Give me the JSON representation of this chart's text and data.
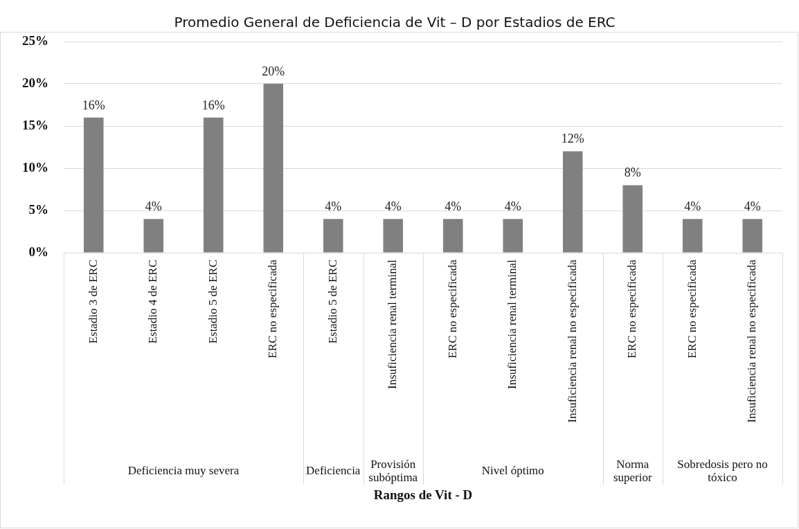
{
  "chart_data": {
    "type": "bar",
    "title": "Promedio General de Deficiencia de Vit – D por Estadios de ERC",
    "xlabel": "Rangos de Vit - D",
    "categories": [
      "Estadio 3 de ERC",
      "Estadio 4 de ERC",
      "Estadio 5 de ERC",
      "ERC no especificada",
      "Estadio 5 de ERC",
      "Insuficiencia renal terminal",
      "ERC no especificada",
      "Insuficiencia renal terminal",
      "Insuficiencia renal no especificada",
      "ERC no especificada",
      "ERC no especificada",
      "Insuficiencia renal no especificada"
    ],
    "values": [
      16,
      4,
      16,
      20,
      4,
      4,
      4,
      4,
      12,
      8,
      4,
      4
    ],
    "value_labels": [
      "16%",
      "4%",
      "16%",
      "20%",
      "4%",
      "4%",
      "4%",
      "4%",
      "12%",
      "8%",
      "4%",
      "4%"
    ],
    "color": "#808080",
    "ylim": [
      0,
      25
    ],
    "yticks": [
      {
        "value": 0,
        "label": "0%"
      },
      {
        "value": 5,
        "label": "5%"
      },
      {
        "value": 10,
        "label": "10%"
      },
      {
        "value": 15,
        "label": "15%"
      },
      {
        "value": 20,
        "label": "20%"
      },
      {
        "value": 25,
        "label": "25%"
      }
    ],
    "grid": "y",
    "legend": false,
    "annotations": [
      "Deficiencia muy severa",
      "Deficiencia",
      "Provisión subóptima",
      "Nivel óptimo",
      "Norma superior",
      "Sobredosis pero no tóxico"
    ]
  }
}
